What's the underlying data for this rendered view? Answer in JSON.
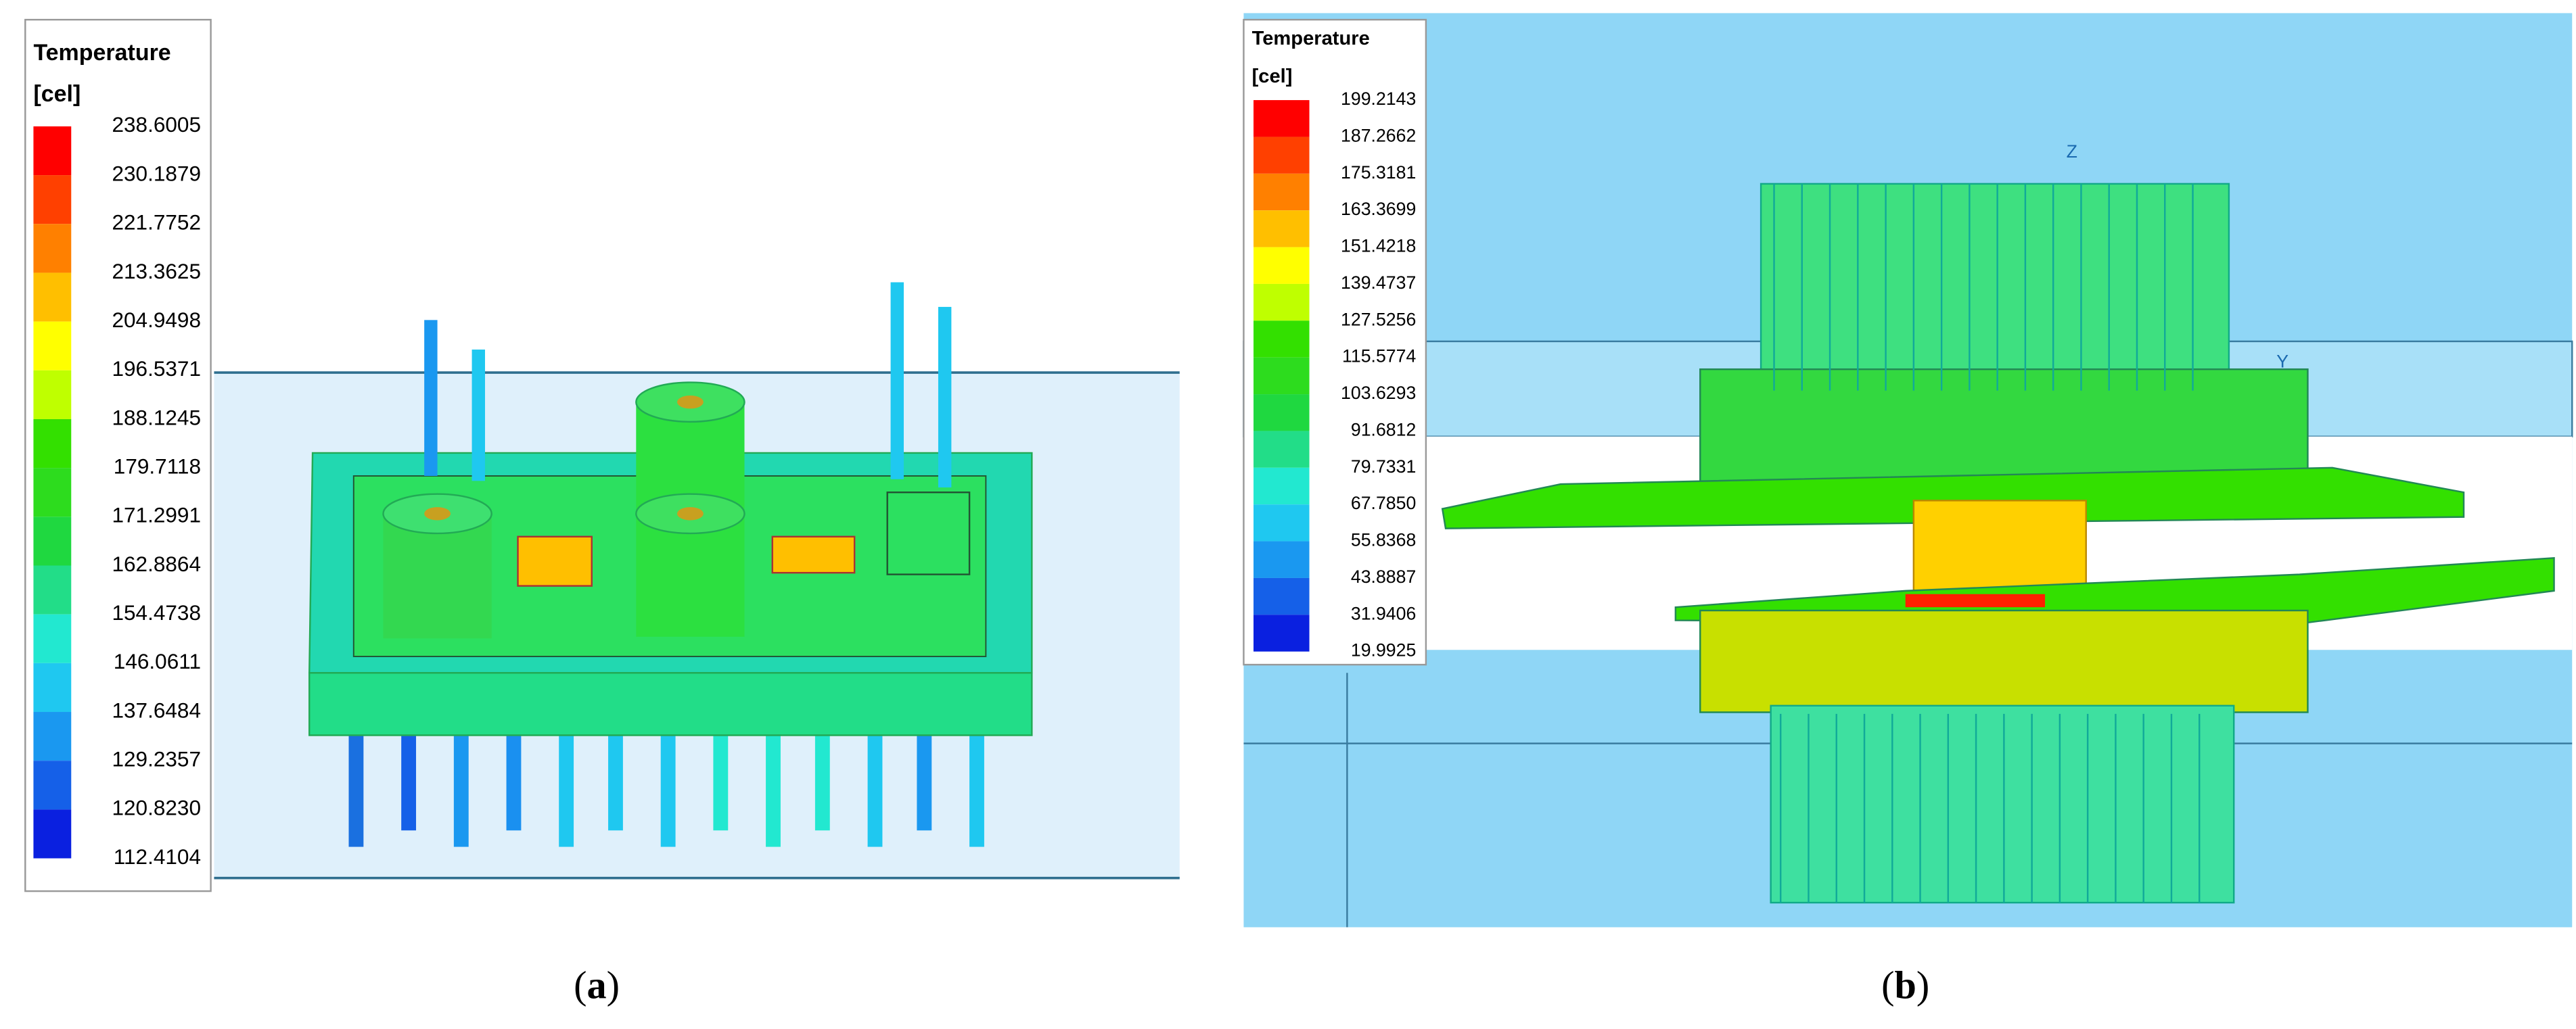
{
  "panels": [
    {
      "legend": {
        "title": "Temperature",
        "unit": "[cel]",
        "labels": [
          "238.6005",
          "230.1879",
          "221.7752",
          "213.3625",
          "204.9498",
          "196.5371",
          "188.1245",
          "179.7118",
          "171.2991",
          "162.8864",
          "154.4738",
          "146.0611",
          "137.6484",
          "129.2357",
          "120.8230",
          "112.4104"
        ],
        "colors": [
          "#ff0000",
          "#ff4000",
          "#ff8000",
          "#ffbf00",
          "#ffff00",
          "#bfff00",
          "#33e000",
          "#2ddc1e",
          "#1fd840",
          "#22dd88",
          "#22e8d0",
          "#1fc8f0",
          "#1a98f0",
          "#1560e8",
          "#0a20e0"
        ]
      },
      "caption": {
        "open": "(",
        "letter": "a",
        "close": ")"
      }
    },
    {
      "legend": {
        "title": "Temperature",
        "unit": "[cel]",
        "labels": [
          "199.2143",
          "187.2662",
          "175.3181",
          "163.3699",
          "151.4218",
          "139.4737",
          "127.5256",
          "115.5774",
          "103.6293",
          "91.6812",
          "79.7331",
          "67.7850",
          "55.8368",
          "43.8887",
          "31.9406",
          "19.9925"
        ],
        "colors": [
          "#ff0000",
          "#ff4000",
          "#ff8000",
          "#ffbf00",
          "#ffff00",
          "#bfff00",
          "#33e000",
          "#2ddc1e",
          "#1fd840",
          "#22dd88",
          "#22e8d0",
          "#1fc8f0",
          "#1a98f0",
          "#1560e8",
          "#0a20e0"
        ]
      },
      "axes": [
        "Z",
        "Y"
      ],
      "caption": {
        "open": "(",
        "letter": "b",
        "close": ")"
      }
    }
  ]
}
